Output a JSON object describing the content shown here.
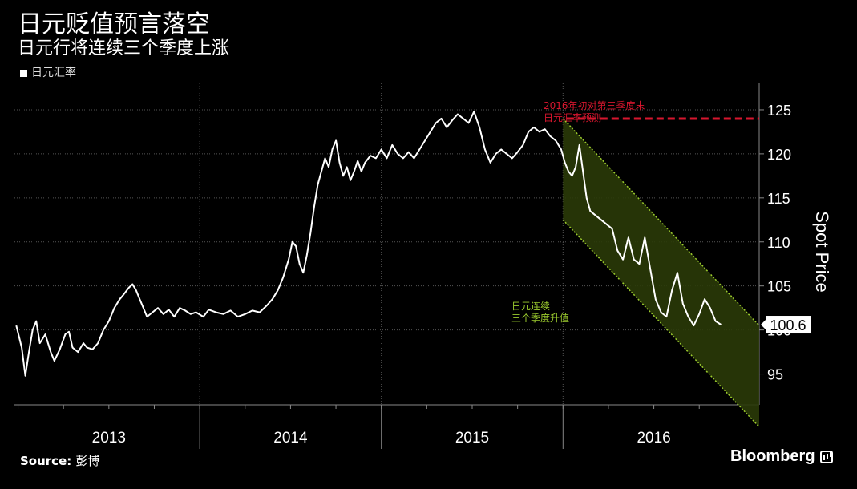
{
  "header": {
    "title": "日元贬值预言落空",
    "subtitle": "日元行将连续三个季度上涨"
  },
  "footer": {
    "source_label": "Source:",
    "source_value": "彭博",
    "brand": "Bloomberg"
  },
  "colors": {
    "background": "#000000",
    "line": "#ffffff",
    "forecast": "#d7162e",
    "channel": "#9ccc2e",
    "channel_fill": "#2a3a08"
  },
  "chart_data": {
    "type": "line",
    "legend": [
      "日元汇率"
    ],
    "ylabel": "Spot Price",
    "ylim": [
      91.5,
      128
    ],
    "yticks": [
      95,
      100,
      105,
      110,
      115,
      120,
      125
    ],
    "x_periods": [
      {
        "label": "2013",
        "start": 2013.0,
        "end": 2014.0
      },
      {
        "label": "2014",
        "start": 2014.0,
        "end": 2015.0
      },
      {
        "label": "2015",
        "start": 2015.0,
        "end": 2016.0
      },
      {
        "label": "2016",
        "start": 2016.0,
        "end": 2017.0
      }
    ],
    "last_value_label": "100.6",
    "series": [
      {
        "name": "日元汇率",
        "points": [
          [
            2012.99,
            100.5
          ],
          [
            2013.02,
            98.0
          ],
          [
            2013.04,
            94.8
          ],
          [
            2013.06,
            97.5
          ],
          [
            2013.08,
            100.0
          ],
          [
            2013.1,
            101.0
          ],
          [
            2013.12,
            98.5
          ],
          [
            2013.15,
            99.5
          ],
          [
            2013.18,
            97.5
          ],
          [
            2013.2,
            96.5
          ],
          [
            2013.23,
            97.8
          ],
          [
            2013.26,
            99.5
          ],
          [
            2013.28,
            99.8
          ],
          [
            2013.3,
            98.0
          ],
          [
            2013.33,
            97.5
          ],
          [
            2013.36,
            98.5
          ],
          [
            2013.38,
            98.0
          ],
          [
            2013.41,
            97.8
          ],
          [
            2013.44,
            98.5
          ],
          [
            2013.47,
            100.0
          ],
          [
            2013.5,
            101.0
          ],
          [
            2013.53,
            102.5
          ],
          [
            2013.56,
            103.5
          ],
          [
            2013.58,
            104.0
          ],
          [
            2013.61,
            104.8
          ],
          [
            2013.63,
            105.2
          ],
          [
            2013.65,
            104.5
          ],
          [
            2013.67,
            103.5
          ],
          [
            2013.69,
            102.5
          ],
          [
            2013.71,
            101.5
          ],
          [
            2013.74,
            102.0
          ],
          [
            2013.77,
            102.5
          ],
          [
            2013.8,
            101.8
          ],
          [
            2013.83,
            102.3
          ],
          [
            2013.86,
            101.5
          ],
          [
            2013.89,
            102.5
          ],
          [
            2013.92,
            102.2
          ],
          [
            2013.95,
            101.8
          ],
          [
            2013.98,
            102.0
          ],
          [
            2014.02,
            101.5
          ],
          [
            2014.05,
            102.3
          ],
          [
            2014.09,
            102.0
          ],
          [
            2014.13,
            101.8
          ],
          [
            2014.17,
            102.2
          ],
          [
            2014.21,
            101.5
          ],
          [
            2014.25,
            101.8
          ],
          [
            2014.29,
            102.2
          ],
          [
            2014.33,
            102.0
          ],
          [
            2014.37,
            102.8
          ],
          [
            2014.4,
            103.5
          ],
          [
            2014.43,
            104.5
          ],
          [
            2014.46,
            106.0
          ],
          [
            2014.49,
            108.0
          ],
          [
            2014.51,
            110.0
          ],
          [
            2014.53,
            109.5
          ],
          [
            2014.55,
            107.5
          ],
          [
            2014.57,
            106.5
          ],
          [
            2014.59,
            108.5
          ],
          [
            2014.61,
            111.0
          ],
          [
            2014.63,
            114.0
          ],
          [
            2014.65,
            116.5
          ],
          [
            2014.67,
            118.0
          ],
          [
            2014.69,
            119.5
          ],
          [
            2014.71,
            118.5
          ],
          [
            2014.73,
            120.5
          ],
          [
            2014.75,
            121.5
          ],
          [
            2014.77,
            119.0
          ],
          [
            2014.79,
            117.5
          ],
          [
            2014.81,
            118.5
          ],
          [
            2014.83,
            117.0
          ],
          [
            2014.85,
            118.0
          ],
          [
            2014.87,
            119.2
          ],
          [
            2014.89,
            118.0
          ],
          [
            2014.91,
            119.0
          ],
          [
            2014.94,
            119.8
          ],
          [
            2014.97,
            119.5
          ],
          [
            2015.0,
            120.5
          ],
          [
            2015.03,
            119.5
          ],
          [
            2015.06,
            121.0
          ],
          [
            2015.09,
            120.0
          ],
          [
            2015.12,
            119.5
          ],
          [
            2015.15,
            120.2
          ],
          [
            2015.18,
            119.5
          ],
          [
            2015.21,
            120.5
          ],
          [
            2015.24,
            121.5
          ],
          [
            2015.27,
            122.5
          ],
          [
            2015.3,
            123.5
          ],
          [
            2015.33,
            124.0
          ],
          [
            2015.36,
            123.0
          ],
          [
            2015.39,
            123.8
          ],
          [
            2015.42,
            124.5
          ],
          [
            2015.45,
            124.0
          ],
          [
            2015.48,
            123.5
          ],
          [
            2015.51,
            124.8
          ],
          [
            2015.54,
            123.0
          ],
          [
            2015.57,
            120.5
          ],
          [
            2015.6,
            119.0
          ],
          [
            2015.63,
            120.0
          ],
          [
            2015.66,
            120.5
          ],
          [
            2015.69,
            120.0
          ],
          [
            2015.72,
            119.5
          ],
          [
            2015.75,
            120.2
          ],
          [
            2015.78,
            121.0
          ],
          [
            2015.81,
            122.5
          ],
          [
            2015.84,
            123.0
          ],
          [
            2015.87,
            122.5
          ],
          [
            2015.9,
            122.8
          ],
          [
            2015.93,
            122.0
          ],
          [
            2015.96,
            121.5
          ],
          [
            2015.99,
            120.5
          ],
          [
            2016.01,
            119.0
          ],
          [
            2016.03,
            118.0
          ],
          [
            2016.05,
            117.5
          ],
          [
            2016.07,
            118.5
          ],
          [
            2016.09,
            121.0
          ],
          [
            2016.11,
            118.0
          ],
          [
            2016.13,
            115.0
          ],
          [
            2016.15,
            113.5
          ],
          [
            2016.18,
            113.0
          ],
          [
            2016.21,
            112.5
          ],
          [
            2016.24,
            112.0
          ],
          [
            2016.27,
            111.5
          ],
          [
            2016.3,
            109.0
          ],
          [
            2016.33,
            108.0
          ],
          [
            2016.36,
            110.5
          ],
          [
            2016.39,
            108.0
          ],
          [
            2016.42,
            107.5
          ],
          [
            2016.45,
            110.5
          ],
          [
            2016.48,
            107.0
          ],
          [
            2016.51,
            103.5
          ],
          [
            2016.54,
            102.0
          ],
          [
            2016.57,
            101.5
          ],
          [
            2016.6,
            104.5
          ],
          [
            2016.63,
            106.5
          ],
          [
            2016.66,
            103.0
          ],
          [
            2016.69,
            101.5
          ],
          [
            2016.72,
            100.5
          ],
          [
            2016.75,
            101.8
          ],
          [
            2016.78,
            103.5
          ],
          [
            2016.81,
            102.5
          ],
          [
            2016.84,
            101.0
          ],
          [
            2016.87,
            100.6
          ]
        ]
      }
    ],
    "forecast": {
      "label_line1": "2016年初对第三季度末",
      "label_line2": "日元汇率预测",
      "x_start": 2016.02,
      "x_end": 2017.08,
      "value": 124
    },
    "channel": {
      "label_line1": "日元连续",
      "label_line2": "三个季度升值",
      "upper": [
        [
          2016.0,
          124.0
        ],
        [
          2017.08,
          100.5
        ]
      ],
      "lower": [
        [
          2016.0,
          112.5
        ],
        [
          2017.08,
          89.0
        ]
      ]
    }
  }
}
